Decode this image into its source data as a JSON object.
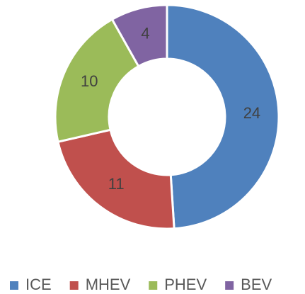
{
  "chart_data": {
    "type": "donut",
    "categories": [
      "ICE",
      "MHEV",
      "PHEV",
      "BEV"
    ],
    "values": [
      24,
      11,
      10,
      4
    ],
    "colors": [
      "#4f81bd",
      "#c0504d",
      "#9bbb59",
      "#8064a2"
    ],
    "legend": "bottom"
  }
}
